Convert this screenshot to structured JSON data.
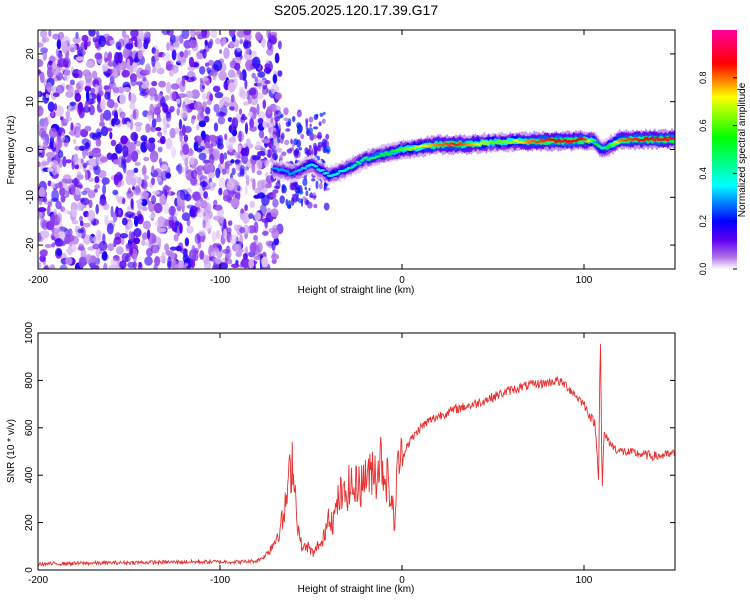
{
  "figure": {
    "title": "S205.2025.120.17.39.G17"
  },
  "chart_data": [
    {
      "type": "heatmap",
      "xlabel": "Height of straight line (km)",
      "ylabel": "Frequency (Hz)",
      "xlim": [
        -200,
        150
      ],
      "ylim": [
        -25,
        25
      ],
      "xticks": [
        -200,
        -100,
        0,
        100
      ],
      "yticks": [
        -20,
        -10,
        0,
        10,
        20
      ],
      "colorbar": {
        "label": "Normalized spectral amplitude",
        "range": [
          0,
          1
        ],
        "ticks": [
          0.0,
          0.2,
          0.4,
          0.6,
          0.8
        ],
        "colormap": "rainbow (magenta-red-yellow-green-cyan-blue-purple-white)",
        "stops": [
          "#ffffff",
          "#b070e8",
          "#6000f0",
          "#0000ff",
          "#00ffff",
          "#00ff00",
          "#ffff00",
          "#ff0000",
          "#ff00a0"
        ]
      },
      "description_values": {
        "noise_region_x": [
          -200,
          -72
        ],
        "noise_region_amplitude": [
          0.0,
          0.15
        ],
        "ridge": {
          "x": [
            -70,
            -60,
            -50,
            -40,
            -30,
            -20,
            -10,
            0,
            10,
            20,
            30,
            40,
            50,
            60,
            70,
            80,
            90,
            100,
            105,
            110,
            120,
            130,
            150
          ],
          "frequency": [
            -4,
            -5,
            -3,
            -5.5,
            -4,
            -2,
            -1,
            0,
            0.5,
            1,
            1,
            1.2,
            1.5,
            1.6,
            1.7,
            1.8,
            1.8,
            1.9,
            2,
            0,
            2,
            2.1,
            2.2
          ],
          "amplitude": [
            0.3,
            0.3,
            0.35,
            0.35,
            0.4,
            0.45,
            0.5,
            0.6,
            0.7,
            0.8,
            0.85,
            0.75,
            0.6,
            0.65,
            0.8,
            0.85,
            0.9,
            0.85,
            0.6,
            0.4,
            0.8,
            0.85,
            0.9
          ]
        }
      }
    },
    {
      "type": "line",
      "xlabel": "Height of straight line (km)",
      "ylabel": "SNR (10 * v/v)",
      "xlim": [
        -200,
        150
      ],
      "ylim": [
        0,
        1000
      ],
      "xticks": [
        -200,
        -100,
        0,
        100
      ],
      "yticks": [
        0,
        200,
        400,
        600,
        800,
        1000
      ],
      "color": "#e83030",
      "series": [
        {
          "x": [
            -200,
            -180,
            -160,
            -140,
            -120,
            -100,
            -90,
            -80,
            -75,
            -70,
            -65,
            -62,
            -60,
            -58,
            -56,
            -54,
            -52,
            -50,
            -48,
            -46,
            -44,
            -42,
            -40,
            -38,
            -36,
            -34,
            -32,
            -30,
            -28,
            -26,
            -24,
            -22,
            -20,
            -18,
            -16,
            -14,
            -12,
            -10,
            -8,
            -6,
            -4,
            -2,
            0,
            2,
            4,
            6,
            10,
            15,
            20,
            30,
            40,
            50,
            60,
            70,
            80,
            85,
            90,
            95,
            100,
            104,
            106,
            108,
            109,
            110,
            111,
            112,
            114,
            116,
            120,
            130,
            140,
            150
          ],
          "y": [
            25,
            28,
            30,
            32,
            34,
            35,
            34,
            38,
            60,
            120,
            220,
            380,
            480,
            250,
            120,
            90,
            100,
            80,
            70,
            110,
            100,
            180,
            250,
            200,
            260,
            320,
            300,
            340,
            360,
            330,
            390,
            350,
            420,
            380,
            450,
            400,
            480,
            420,
            380,
            300,
            200,
            480,
            450,
            520,
            540,
            560,
            600,
            630,
            650,
            680,
            700,
            730,
            760,
            780,
            790,
            800,
            780,
            740,
            700,
            640,
            620,
            400,
            1000,
            320,
            580,
            560,
            540,
            520,
            500,
            490,
            480,
            490
          ]
        }
      ]
    }
  ]
}
